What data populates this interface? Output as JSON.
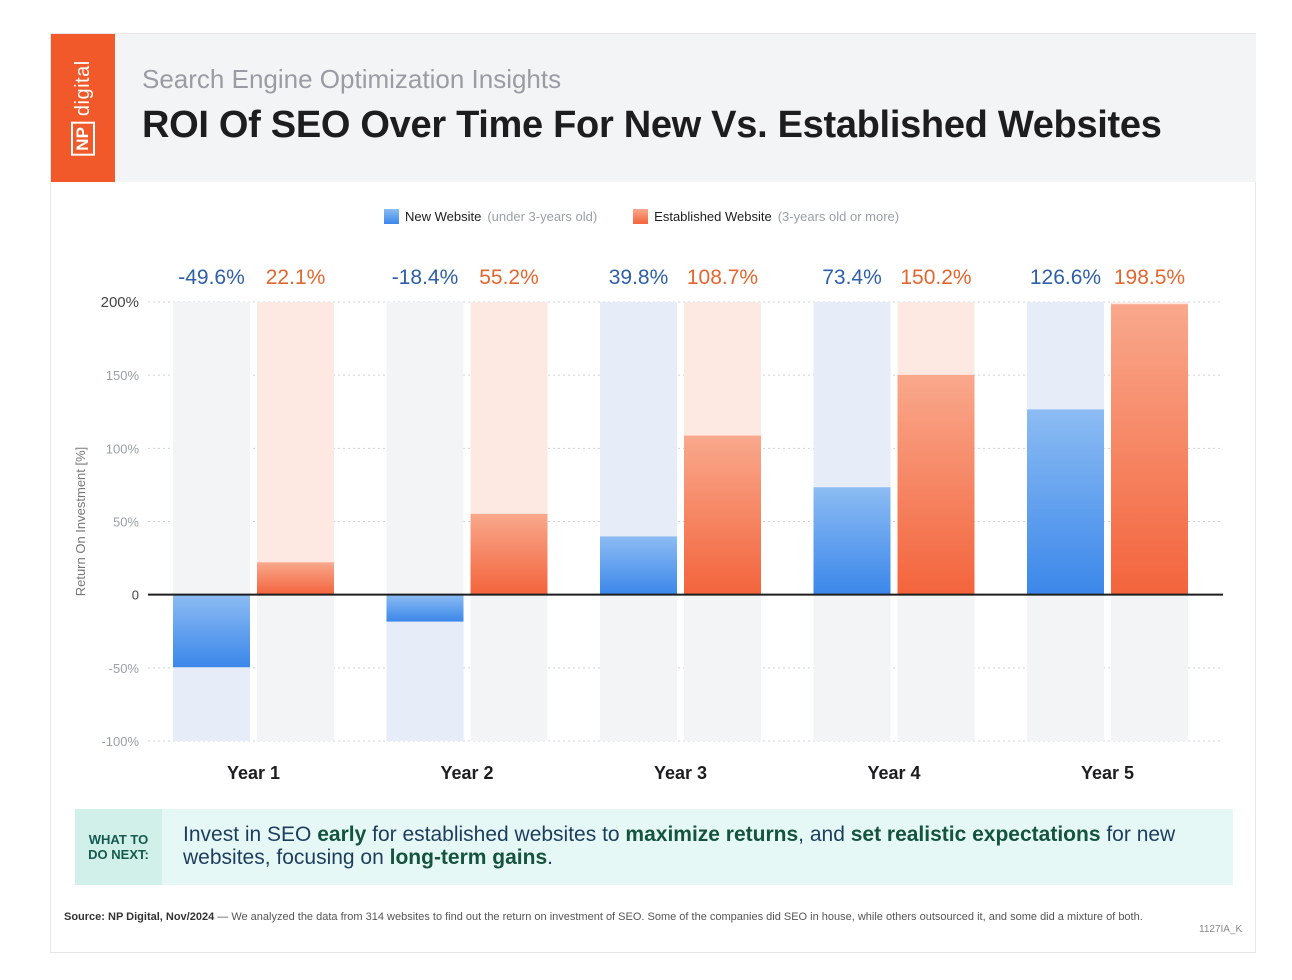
{
  "brand": {
    "np": "NP",
    "digital": "digital",
    "color": "#f1592a"
  },
  "header": {
    "subtitle": "Search Engine Optimization Insights",
    "title": "ROI Of SEO Over Time For New Vs. Established Websites"
  },
  "legend": [
    {
      "name": "New Website",
      "note": "(under 3-years old)",
      "color": "#3b87ea"
    },
    {
      "name": "Established Website",
      "note": "(3-years old or more)",
      "color": "#f3643c"
    }
  ],
  "chart_data": {
    "type": "bar",
    "categories": [
      "Year 1",
      "Year 2",
      "Year 3",
      "Year 4",
      "Year 5"
    ],
    "series": [
      {
        "name": "New Website",
        "values": [
          -49.6,
          -18.4,
          39.8,
          73.4,
          126.6
        ],
        "labels": [
          "-49.6%",
          "-18.4%",
          "39.8%",
          "73.4%",
          "126.6%"
        ],
        "color": "#3b87ea",
        "label_color": "#2e5fa8"
      },
      {
        "name": "Established Website",
        "values": [
          22.1,
          55.2,
          108.7,
          150.2,
          198.5
        ],
        "labels": [
          "22.1%",
          "55.2%",
          "108.7%",
          "150.2%",
          "198.5%"
        ],
        "color": "#f3643c",
        "label_color": "#e2672f"
      }
    ],
    "ylabel": "Return On Investment [%]",
    "ylim": [
      -100,
      200
    ],
    "yticks": [
      200,
      150,
      100,
      50,
      0,
      -50,
      -100
    ],
    "ytick_labels": [
      "200%",
      "150%",
      "100%",
      "50%",
      "0",
      "-50%",
      "-100%"
    ],
    "grid": true,
    "legend_position": "top-center"
  },
  "callout": {
    "tag_line1": "WHAT TO",
    "tag_line2": "DO NEXT:",
    "parts": [
      {
        "text": "Invest in SEO ",
        "bold": false
      },
      {
        "text": "early",
        "bold": true
      },
      {
        "text": " for established websites to ",
        "bold": false
      },
      {
        "text": "maximize returns",
        "bold": true
      },
      {
        "text": ", and ",
        "bold": false
      },
      {
        "text": "set realistic expectations",
        "bold": true
      },
      {
        "text": " for new websites, focusing on ",
        "bold": false
      },
      {
        "text": "long-term gains",
        "bold": true
      },
      {
        "text": ".",
        "bold": false
      }
    ]
  },
  "footer": {
    "source_label": "Source:",
    "source_name": "NP Digital, Nov/2024",
    "source_text": " — We analyzed the data from 314 websites to find out the return on investment of SEO. Some of the companies did SEO in house, while others outsourced it, and some did a mixture of both.",
    "code": "1127IA_K"
  }
}
